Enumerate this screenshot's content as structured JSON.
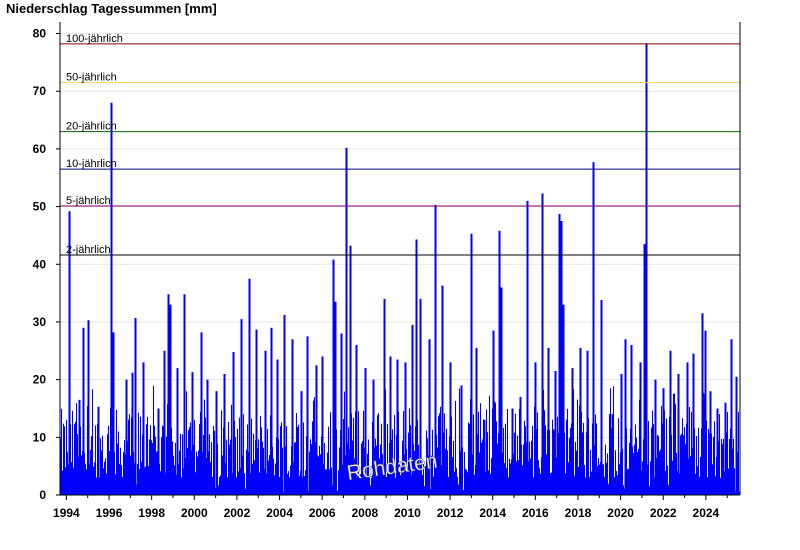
{
  "chart_data": {
    "type": "bar",
    "title": "Niederschlag Tagessummen [mm]",
    "xlabel": "",
    "ylabel": "",
    "x_start_year": 1993.7,
    "x_end_year": 2025.6,
    "xlim": [
      1993.7,
      2025.6
    ],
    "ylim": [
      0,
      82
    ],
    "yticks": [
      0,
      10,
      20,
      30,
      40,
      50,
      60,
      70,
      80
    ],
    "xticks": [
      "1994",
      "1996",
      "1998",
      "2000",
      "2002",
      "2004",
      "2006",
      "2008",
      "2010",
      "2012",
      "2014",
      "2016",
      "2018",
      "2020",
      "2022",
      "2024"
    ],
    "xtick_years": [
      1994,
      1996,
      1998,
      2000,
      2002,
      2004,
      2006,
      2008,
      2010,
      2012,
      2014,
      2016,
      2018,
      2020,
      2022,
      2024
    ],
    "bar_color": "#0000ff",
    "grid": true,
    "thresholds": [
      {
        "label": "100-jährlich",
        "value": 78.2,
        "color": "#800000"
      },
      {
        "label": "50-jährlich",
        "value": 71.5,
        "color": "#ffd060"
      },
      {
        "label": "20-jährlich",
        "value": 63.0,
        "color": "#006400"
      },
      {
        "label": "10-jährlich",
        "value": 56.5,
        "color": "#000080"
      },
      {
        "label": "5-jährlich",
        "value": 50.1,
        "color": "#800080"
      },
      {
        "label": "2-jährlich",
        "value": 41.6,
        "color": "#000000"
      }
    ],
    "peaks": [
      {
        "x": 1994.1,
        "y": 49.2
      },
      {
        "x": 1994.6,
        "y": 16.5
      },
      {
        "x": 1994.8,
        "y": 29.0
      },
      {
        "x": 1995.0,
        "y": 30.3
      },
      {
        "x": 1995.5,
        "y": 15.3
      },
      {
        "x": 1996.1,
        "y": 68.0
      },
      {
        "x": 1996.2,
        "y": 28.2
      },
      {
        "x": 1996.8,
        "y": 20.0
      },
      {
        "x": 1997.1,
        "y": 21.2
      },
      {
        "x": 1997.2,
        "y": 30.7
      },
      {
        "x": 1997.6,
        "y": 23.0
      },
      {
        "x": 1998.3,
        "y": 15.0
      },
      {
        "x": 1998.6,
        "y": 25.0
      },
      {
        "x": 1998.75,
        "y": 34.8
      },
      {
        "x": 1998.85,
        "y": 33.0
      },
      {
        "x": 1999.2,
        "y": 22.0
      },
      {
        "x": 1999.5,
        "y": 34.8
      },
      {
        "x": 1999.9,
        "y": 21.3
      },
      {
        "x": 2000.3,
        "y": 28.2
      },
      {
        "x": 2000.6,
        "y": 20.0
      },
      {
        "x": 2001.0,
        "y": 18.0
      },
      {
        "x": 2001.4,
        "y": 21.0
      },
      {
        "x": 2001.8,
        "y": 24.8
      },
      {
        "x": 2002.2,
        "y": 30.5
      },
      {
        "x": 2002.55,
        "y": 37.5
      },
      {
        "x": 2002.9,
        "y": 28.7
      },
      {
        "x": 2003.3,
        "y": 25.0
      },
      {
        "x": 2003.6,
        "y": 29.0
      },
      {
        "x": 2003.9,
        "y": 23.5
      },
      {
        "x": 2004.2,
        "y": 31.2
      },
      {
        "x": 2004.6,
        "y": 27.0
      },
      {
        "x": 2005.0,
        "y": 18.0
      },
      {
        "x": 2005.3,
        "y": 27.5
      },
      {
        "x": 2005.7,
        "y": 22.5
      },
      {
        "x": 2006.0,
        "y": 24.0
      },
      {
        "x": 2006.5,
        "y": 40.8
      },
      {
        "x": 2006.6,
        "y": 33.5
      },
      {
        "x": 2006.9,
        "y": 28.0
      },
      {
        "x": 2007.1,
        "y": 60.2
      },
      {
        "x": 2007.3,
        "y": 43.2
      },
      {
        "x": 2007.6,
        "y": 26.0
      },
      {
        "x": 2008.0,
        "y": 22.0
      },
      {
        "x": 2008.4,
        "y": 20.0
      },
      {
        "x": 2008.9,
        "y": 34.0
      },
      {
        "x": 2009.2,
        "y": 24.0
      },
      {
        "x": 2009.5,
        "y": 23.5
      },
      {
        "x": 2009.9,
        "y": 23.0
      },
      {
        "x": 2010.2,
        "y": 29.5
      },
      {
        "x": 2010.4,
        "y": 44.3
      },
      {
        "x": 2010.6,
        "y": 34.0
      },
      {
        "x": 2011.0,
        "y": 27.0
      },
      {
        "x": 2011.3,
        "y": 50.3
      },
      {
        "x": 2011.6,
        "y": 36.3
      },
      {
        "x": 2012.0,
        "y": 23.0
      },
      {
        "x": 2012.5,
        "y": 19.0
      },
      {
        "x": 2013.0,
        "y": 45.3
      },
      {
        "x": 2013.2,
        "y": 25.5
      },
      {
        "x": 2013.6,
        "y": 13.0
      },
      {
        "x": 2014.0,
        "y": 28.5
      },
      {
        "x": 2014.3,
        "y": 45.8
      },
      {
        "x": 2014.4,
        "y": 36.0
      },
      {
        "x": 2014.9,
        "y": 15.0
      },
      {
        "x": 2015.3,
        "y": 17.0
      },
      {
        "x": 2015.6,
        "y": 51.0
      },
      {
        "x": 2016.0,
        "y": 23.0
      },
      {
        "x": 2016.3,
        "y": 52.3
      },
      {
        "x": 2016.6,
        "y": 25.5
      },
      {
        "x": 2016.9,
        "y": 21.5
      },
      {
        "x": 2017.1,
        "y": 48.7
      },
      {
        "x": 2017.2,
        "y": 47.5
      },
      {
        "x": 2017.3,
        "y": 33.0
      },
      {
        "x": 2017.7,
        "y": 22.0
      },
      {
        "x": 2018.1,
        "y": 25.5
      },
      {
        "x": 2018.4,
        "y": 25.0
      },
      {
        "x": 2018.7,
        "y": 57.7
      },
      {
        "x": 2019.1,
        "y": 33.8
      },
      {
        "x": 2019.6,
        "y": 14.0
      },
      {
        "x": 2020.0,
        "y": 21.0
      },
      {
        "x": 2020.2,
        "y": 27.0
      },
      {
        "x": 2020.5,
        "y": 26.0
      },
      {
        "x": 2020.9,
        "y": 23.0
      },
      {
        "x": 2021.1,
        "y": 43.5
      },
      {
        "x": 2021.2,
        "y": 78.3
      },
      {
        "x": 2021.6,
        "y": 20.0
      },
      {
        "x": 2022.0,
        "y": 18.5
      },
      {
        "x": 2022.3,
        "y": 25.0
      },
      {
        "x": 2022.7,
        "y": 21.0
      },
      {
        "x": 2023.1,
        "y": 23.0
      },
      {
        "x": 2023.4,
        "y": 24.5
      },
      {
        "x": 2023.8,
        "y": 31.5
      },
      {
        "x": 2023.95,
        "y": 28.5
      },
      {
        "x": 2024.2,
        "y": 18.0
      },
      {
        "x": 2024.5,
        "y": 15.0
      },
      {
        "x": 2024.9,
        "y": 16.0
      },
      {
        "x": 2025.2,
        "y": 27.0
      },
      {
        "x": 2025.4,
        "y": 20.5
      }
    ],
    "annotation": "Rohdaten"
  }
}
